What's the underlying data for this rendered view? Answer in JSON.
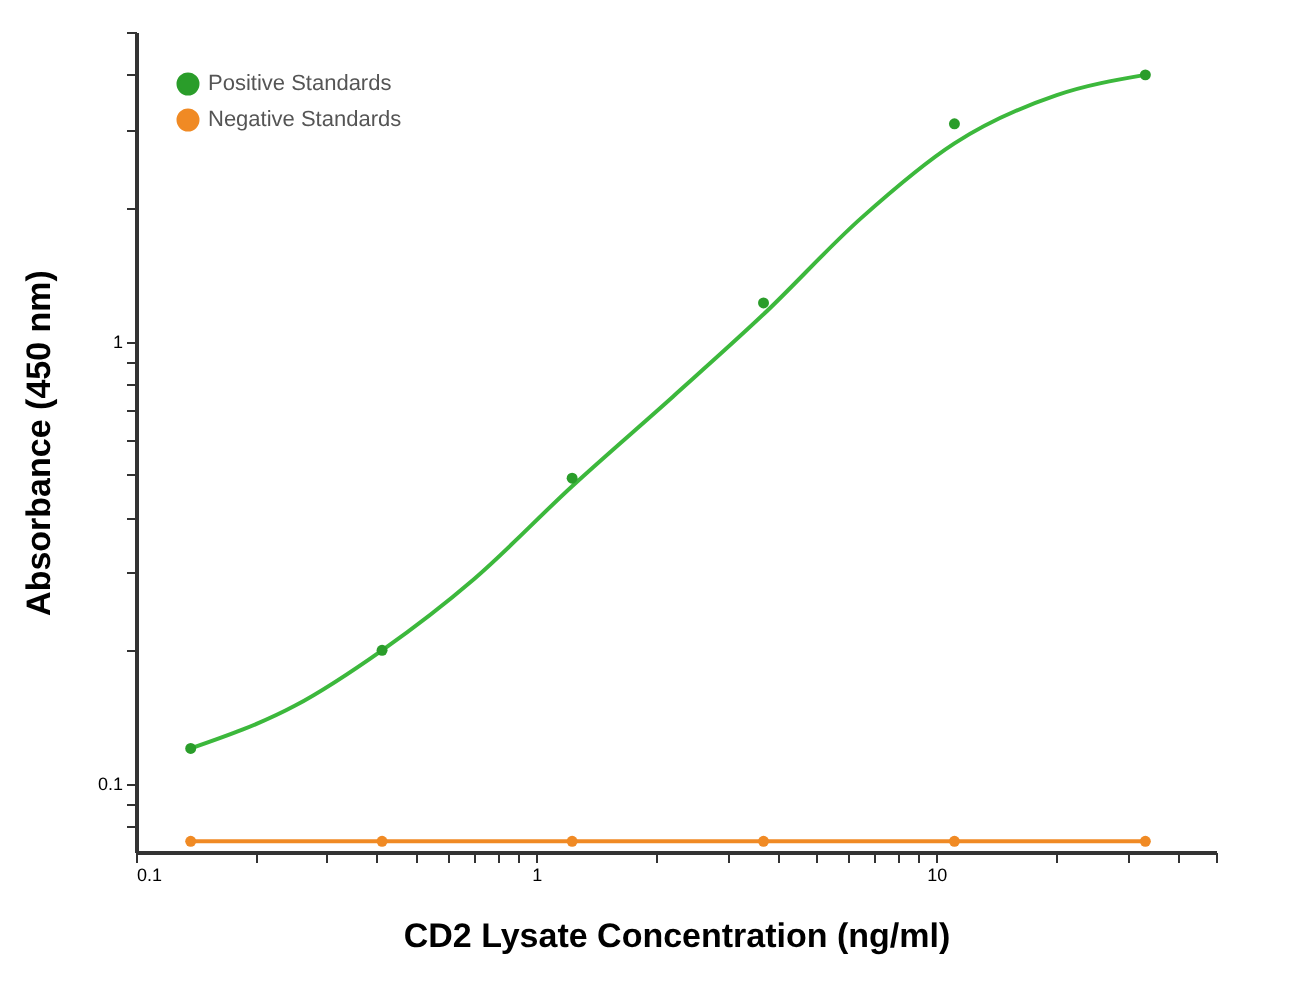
{
  "chart_data": {
    "type": "scatter",
    "xlabel": "CD2 Lysate Concentration (ng/ml)",
    "ylabel": "Absorbance (450 nm)",
    "log": "xy",
    "xlim": [
      0.1,
      50
    ],
    "ylim": [
      0.07,
      5
    ],
    "xticks": [
      0.1,
      {
        "value": 0.2,
        "label": null
      },
      {
        "value": 0.3,
        "label": null
      },
      {
        "value": 0.4,
        "label": null
      },
      {
        "value": 0.5,
        "label": null
      },
      {
        "value": 0.6,
        "label": null
      },
      {
        "value": 0.7,
        "label": null
      },
      {
        "value": 0.8,
        "label": null
      },
      {
        "value": 0.9,
        "label": null
      },
      1,
      {
        "value": 2,
        "label": null
      },
      {
        "value": 3,
        "label": null
      },
      {
        "value": 4,
        "label": null
      },
      {
        "value": 5,
        "label": null
      },
      {
        "value": 6,
        "label": null
      },
      {
        "value": 7,
        "label": null
      },
      {
        "value": 8,
        "label": null
      },
      {
        "value": 9,
        "label": null
      },
      10,
      {
        "value": 20,
        "label": null
      },
      {
        "value": 30,
        "label": null
      },
      {
        "value": 40,
        "label": null
      },
      {
        "value": 50,
        "label": null
      }
    ],
    "yticks": [
      {
        "value": 0.08,
        "label": null
      },
      {
        "value": 0.09,
        "label": null
      },
      0.1,
      {
        "value": 0.2,
        "label": null
      },
      {
        "value": 0.3,
        "label": null
      },
      {
        "value": 0.4,
        "label": null
      },
      {
        "value": 0.5,
        "label": null
      },
      {
        "value": 0.6,
        "label": null
      },
      {
        "value": 0.7,
        "label": null
      },
      {
        "value": 0.8,
        "label": null
      },
      {
        "value": 0.9,
        "label": null
      },
      1,
      {
        "value": 2,
        "label": null
      },
      {
        "value": 3,
        "label": null
      },
      {
        "value": 4,
        "label": null
      },
      {
        "value": 5,
        "label": null
      }
    ],
    "grid": false,
    "legend": "top left",
    "marker": "circle",
    "series": [
      {
        "type": "line",
        "color": "#3cb83c",
        "marker": "none",
        "x": [
          0.137,
          0.25,
          0.412,
          0.7,
          1.23,
          2.2,
          3.7,
          6.5,
          11.1,
          20,
          33.3
        ],
        "values": [
          0.12,
          0.15,
          0.2,
          0.29,
          0.47,
          0.75,
          1.15,
          1.9,
          2.8,
          3.6,
          4.0
        ]
      },
      {
        "name": "Positive Standards",
        "color": "#2a9d2a",
        "x": [
          0.137,
          0.412,
          1.23,
          3.7,
          11.1,
          33.3
        ],
        "values": [
          0.12,
          0.2,
          0.49,
          1.22,
          3.1,
          4.0
        ]
      },
      {
        "name": "Negative Standards",
        "type": "line",
        "color": "#f08a24",
        "x": [
          0.137,
          0.412,
          1.23,
          3.7,
          11.1,
          33.3
        ],
        "values": [
          0.074,
          0.074,
          0.074,
          0.074,
          0.074,
          0.074
        ]
      }
    ]
  }
}
